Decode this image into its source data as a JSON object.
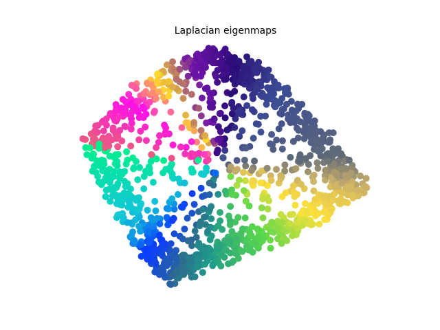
{
  "chart_data": {
    "type": "scatter",
    "title": "Laplacian eigenmaps",
    "xlabel": "",
    "ylabel": "",
    "axes_visible": false,
    "grid": false,
    "legend": "none",
    "xlim": [
      -1.15,
      1.15
    ],
    "ylim": [
      -1.0,
      1.0
    ],
    "colormap": "gist_ncar",
    "color_value_range": [
      0,
      1
    ],
    "point_count": 1500,
    "point_color_stops": [
      {
        "at": 0.0,
        "color": "#e8607a"
      },
      {
        "at": 0.07,
        "color": "#ff10e8"
      },
      {
        "at": 0.12,
        "color": "#ffd92a"
      },
      {
        "at": 0.17,
        "color": "#6f12a8"
      },
      {
        "at": 0.24,
        "color": "#2a0c78"
      },
      {
        "at": 0.32,
        "color": "#3b4c94"
      },
      {
        "at": 0.4,
        "color": "#5f6a78"
      },
      {
        "at": 0.48,
        "color": "#cbb06a"
      },
      {
        "at": 0.56,
        "color": "#ffe13a"
      },
      {
        "at": 0.63,
        "color": "#5bd84a"
      },
      {
        "at": 0.71,
        "color": "#1e9a8a"
      },
      {
        "at": 0.79,
        "color": "#2e6a8e"
      },
      {
        "at": 0.86,
        "color": "#0a3cff"
      },
      {
        "at": 0.92,
        "color": "#12c7d7"
      },
      {
        "at": 1.0,
        "color": "#00f08a"
      }
    ]
  }
}
